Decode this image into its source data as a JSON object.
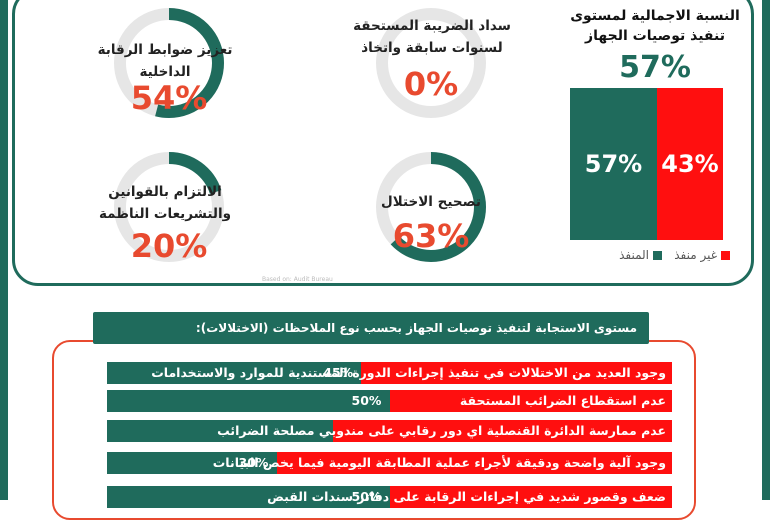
{
  "overall": {
    "title_line1": "النسبة الاجمالية لمستوى",
    "title_line2": "تنفيذ توصيات الجهاز",
    "percent_label": "57%",
    "implemented_label": "57%",
    "not_implemented_label": "43%",
    "legend_implemented": "المنفذ",
    "legend_not_implemented": "غير منفذ"
  },
  "donuts": [
    {
      "id": "tax",
      "label_line1": "سداد الضريبة المستحقة",
      "label_line2": "لسنوات سابقة واتخاذ",
      "value": 0,
      "value_label": "0%"
    },
    {
      "id": "controls",
      "label_line1": "تعزيز ضوابط الرقابة",
      "label_line2": "الداخلية",
      "value": 54,
      "value_label": "54%"
    },
    {
      "id": "fix",
      "label_line1": "تصحيح الاختلال",
      "label_line2": "",
      "value": 63,
      "value_label": "63%"
    },
    {
      "id": "laws",
      "label_line1": "الالتزام بالقوانين",
      "label_line2": "والتشريعات الناظمة",
      "value": 20,
      "value_label": "20%"
    }
  ],
  "watermark": "Based on: Audit Bureau",
  "section": {
    "title": "مستوى الاستجابة لتنفيذ توصيات الجهاز بحسب نوع الملاحظات (الاختلالات):"
  },
  "chart_data": {
    "type": "bar",
    "orientation": "horizontal-stacked",
    "categories": [
      "وجود العديد من الاختلالات في تنفيذ إجراءات الدورة المستندية للموارد والاستخدامات",
      "عدم استقطاع الضرائب المستحقة",
      "عدم ممارسة الدائرة القنصلية اي دور رقابي على مندوبي مصلحة الضرائب",
      "وجود آلية واضحة ودقيقة لأجراء عملية المطابقة اليومية فيما يخص البيانات",
      "ضعف وقصور شديد في إجراءات الرقابة على دفاتر سندات القبض"
    ],
    "series": [
      {
        "name": "المنفذ",
        "values": [
          45,
          50,
          null,
          30,
          50
        ]
      }
    ],
    "value_labels": [
      "45%",
      "50%",
      "",
      "30%",
      "50%"
    ],
    "colors": {
      "implemented": "#1f6b5c",
      "not_implemented": "#ff0f0f"
    },
    "xlim": [
      0,
      100
    ]
  },
  "colors": {
    "accent": "#1f6b5c",
    "highlight": "#e84a2f",
    "track": "#e6e6e6"
  }
}
